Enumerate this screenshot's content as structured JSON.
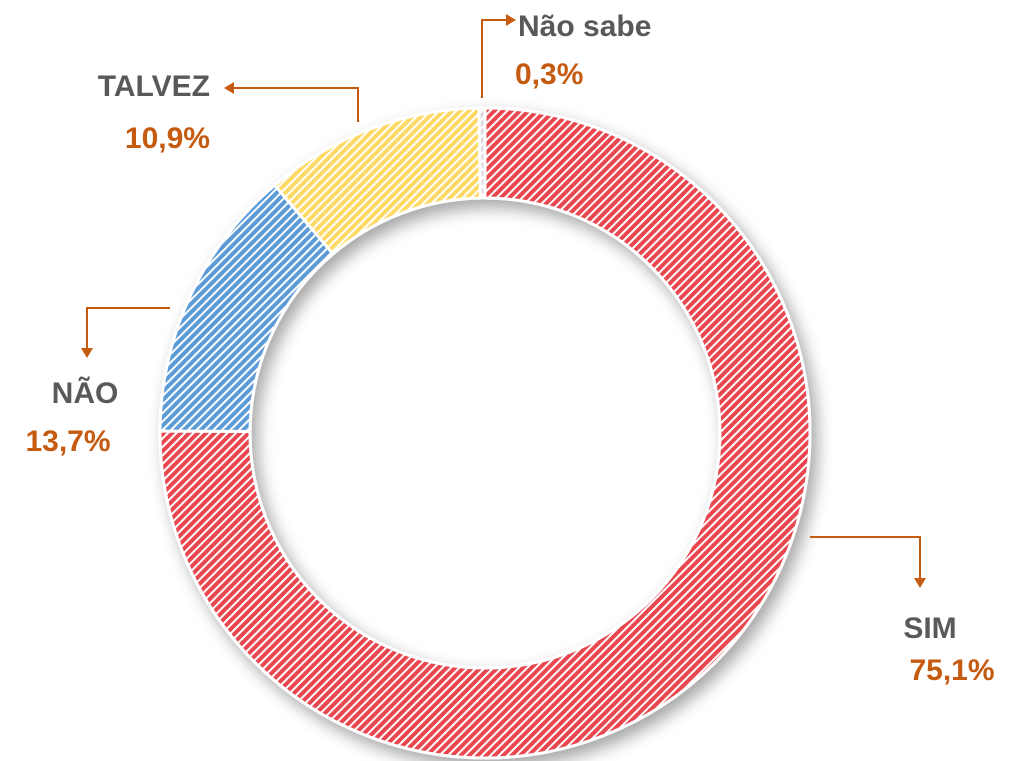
{
  "chart_data": {
    "type": "donut",
    "categories": [
      "SIM",
      "NÃO",
      "TALVEZ",
      "Não sabe"
    ],
    "values": [
      75.1,
      13.7,
      10.9,
      0.3
    ],
    "value_labels": [
      "75,1%",
      "13,7%",
      "10,9%",
      "0,3%"
    ],
    "colors": [
      "#e8474f",
      "#5b9bd5",
      "#ffd966",
      "#d9d9d9"
    ]
  }
}
